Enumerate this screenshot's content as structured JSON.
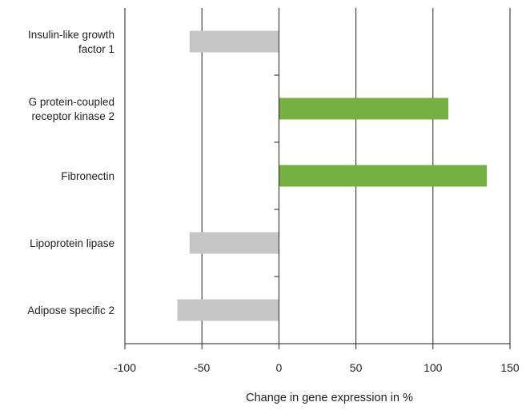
{
  "chart_data": {
    "type": "bar",
    "orientation": "horizontal",
    "categories": [
      [
        "Insulin-like growth",
        "factor 1"
      ],
      [
        "G protein-coupled",
        "receptor kinase 2"
      ],
      [
        "Fibronectin"
      ],
      [
        "Lipoprotein lipase"
      ],
      [
        "Adipose specific 2"
      ]
    ],
    "values": [
      -58,
      110,
      135,
      -58,
      -66
    ],
    "xlabel": "Change in gene expression in %",
    "ylabel": "",
    "xlim": [
      -100,
      150
    ],
    "xticks": [
      "-100",
      "-50",
      "0",
      "50",
      "100",
      "150"
    ],
    "xtick_values": [
      -100,
      -50,
      0,
      50,
      100,
      150
    ],
    "grid": "vertical",
    "colors": {
      "positive": "#76b041",
      "negative": "#c6c6c6",
      "axis": "#222222"
    }
  }
}
